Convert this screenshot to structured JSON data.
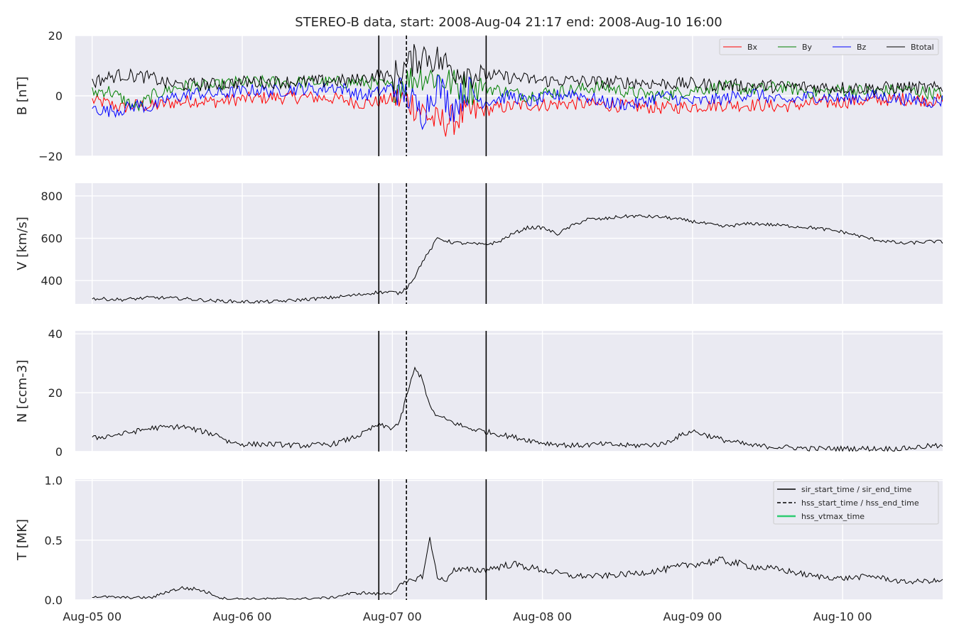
{
  "chart_data": {
    "type": "line",
    "title": "STEREO-B data, start: 2008-Aug-04 21:17  end: 2008-Aug-10 16:00",
    "x_ticks": [
      "Aug-05 00",
      "Aug-06 00",
      "Aug-07 00",
      "Aug-08 00",
      "Aug-09 00",
      "Aug-10 00"
    ],
    "markers": {
      "sir_start_time": "2008-08-06 21:50",
      "hss_start_time": "2008-08-07 02:15",
      "sir_end_time": "2008-08-07 15:00"
    },
    "legend_events": [
      {
        "label": "sir_start_time / sir_end_time",
        "color": "#000000",
        "dash": "solid"
      },
      {
        "label": "hss_start_time / hss_end_time",
        "color": "#000000",
        "dash": "dashed"
      },
      {
        "label": "hss_vtmax_time",
        "color": "#2ecc71",
        "dash": "solid"
      }
    ],
    "panels": [
      {
        "id": "B",
        "ylabel": "B [nT]",
        "ylim": [
          -20,
          20
        ],
        "yticks": [
          "−20",
          "0",
          "20"
        ],
        "ytick_values": [
          -20,
          0,
          20
        ],
        "series": [
          {
            "name": "Bx",
            "color": "#ff0000",
            "x": [
              0.0,
              0.1,
              0.2,
              0.3,
              0.4,
              0.5,
              0.6,
              0.7,
              0.8,
              0.9,
              1.0,
              1.1,
              1.2,
              1.3,
              1.4,
              1.5,
              1.6,
              1.7,
              1.8,
              1.9,
              2.0,
              2.1,
              2.2,
              2.3,
              2.4,
              2.5,
              2.6,
              2.7,
              2.8,
              2.9,
              3.0,
              3.2,
              3.4,
              3.6,
              3.8,
              4.0,
              4.2,
              4.4,
              4.6,
              4.8,
              5.0,
              5.2,
              5.4,
              5.6,
              5.75
            ],
            "values": [
              -1.5,
              -2.5,
              -4.0,
              -3.0,
              -3.5,
              -2.5,
              -2.0,
              -1.5,
              -2.0,
              -1.5,
              -1.0,
              -0.8,
              -0.5,
              -0.6,
              -0.4,
              -0.6,
              -0.8,
              -1.5,
              -2.5,
              -2.0,
              -1.0,
              -1.5,
              -5.0,
              -9.0,
              -8.0,
              -6.0,
              -5.0,
              -4.0,
              -3.5,
              -3.0,
              -3.0,
              -2.5,
              -3.0,
              -3.5,
              -4.0,
              -3.5,
              -3.0,
              -3.0,
              -3.5,
              -2.5,
              -2.0,
              -1.5,
              -1.0,
              -1.5,
              -1.0
            ]
          },
          {
            "name": "By",
            "color": "#008000",
            "x": [
              0.0,
              0.1,
              0.2,
              0.3,
              0.4,
              0.5,
              0.6,
              0.7,
              0.8,
              0.9,
              1.0,
              1.1,
              1.2,
              1.3,
              1.4,
              1.5,
              1.6,
              1.7,
              1.8,
              1.9,
              2.0,
              2.1,
              2.2,
              2.3,
              2.4,
              2.5,
              2.6,
              2.7,
              2.8,
              2.9,
              3.0,
              3.2,
              3.4,
              3.6,
              3.8,
              4.0,
              4.2,
              4.4,
              4.6,
              4.8,
              5.0,
              5.2,
              5.4,
              5.6,
              5.75
            ],
            "values": [
              1.0,
              2.0,
              -1.0,
              -4.0,
              0.0,
              2.0,
              3.0,
              3.5,
              3.0,
              4.0,
              4.5,
              4.5,
              4.5,
              4.5,
              4.5,
              4.5,
              4.5,
              4.5,
              4.5,
              4.0,
              3.0,
              5.0,
              7.0,
              6.0,
              4.0,
              2.0,
              3.0,
              2.0,
              1.0,
              0.0,
              1.0,
              2.0,
              3.0,
              1.0,
              0.0,
              2.0,
              3.0,
              2.0,
              3.0,
              1.0,
              2.0,
              1.5,
              2.0,
              1.0,
              0.0
            ]
          },
          {
            "name": "Bz",
            "color": "#0000ff",
            "x": [
              0.0,
              0.1,
              0.2,
              0.3,
              0.4,
              0.5,
              0.6,
              0.7,
              0.8,
              0.9,
              1.0,
              1.1,
              1.2,
              1.3,
              1.4,
              1.5,
              1.6,
              1.7,
              1.8,
              1.9,
              2.0,
              2.1,
              2.2,
              2.3,
              2.4,
              2.5,
              2.6,
              2.7,
              2.8,
              2.9,
              3.0,
              3.2,
              3.4,
              3.6,
              3.8,
              4.0,
              4.2,
              4.4,
              4.6,
              4.8,
              5.0,
              5.2,
              5.4,
              5.6,
              5.75
            ],
            "values": [
              -4.0,
              -5.0,
              -4.5,
              -3.0,
              -4.0,
              -1.0,
              0.0,
              1.0,
              0.5,
              1.0,
              1.5,
              2.0,
              1.5,
              2.0,
              2.5,
              2.0,
              3.0,
              2.0,
              0.0,
              1.0,
              3.0,
              0.0,
              -6.0,
              4.0,
              -4.0,
              2.0,
              -2.0,
              -1.0,
              0.0,
              -2.0,
              -1.0,
              1.0,
              -2.0,
              -3.0,
              0.0,
              -2.0,
              -1.0,
              1.0,
              -2.0,
              0.0,
              -1.0,
              0.0,
              -1.0,
              -2.0,
              -1.0
            ]
          },
          {
            "name": "Btotal",
            "color": "#000000",
            "x": [
              0.0,
              0.1,
              0.2,
              0.3,
              0.4,
              0.5,
              0.6,
              0.7,
              0.8,
              0.9,
              1.0,
              1.1,
              1.2,
              1.3,
              1.4,
              1.5,
              1.6,
              1.7,
              1.8,
              1.9,
              2.0,
              2.1,
              2.2,
              2.3,
              2.4,
              2.5,
              2.6,
              2.7,
              2.8,
              2.9,
              3.0,
              3.2,
              3.4,
              3.6,
              3.8,
              4.0,
              4.2,
              4.4,
              4.6,
              4.8,
              5.0,
              5.2,
              5.4,
              5.6,
              5.75
            ],
            "values": [
              4.5,
              6.0,
              7.0,
              6.5,
              6.0,
              4.0,
              3.5,
              4.0,
              3.8,
              4.0,
              4.5,
              4.6,
              4.6,
              4.7,
              4.7,
              4.8,
              5.0,
              5.0,
              5.5,
              7.0,
              6.0,
              10.0,
              14.0,
              12.0,
              9.0,
              8.0,
              7.0,
              6.5,
              6.0,
              5.5,
              5.0,
              5.0,
              4.5,
              4.5,
              4.0,
              4.0,
              3.5,
              3.5,
              3.0,
              3.0,
              2.8,
              2.5,
              2.8,
              2.5,
              2.5
            ]
          }
        ]
      },
      {
        "id": "V",
        "ylabel": "V [km/s]",
        "ylim": [
          290,
          860
        ],
        "yticks": [
          "400",
          "600",
          "800"
        ],
        "ytick_values": [
          400,
          600,
          800
        ],
        "series": [
          {
            "name": "V",
            "color": "#000000",
            "x": [
              0.0,
              0.2,
              0.4,
              0.6,
              0.8,
              1.0,
              1.2,
              1.4,
              1.6,
              1.8,
              1.9,
              2.0,
              2.05,
              2.1,
              2.15,
              2.2,
              2.25,
              2.3,
              2.4,
              2.5,
              2.6,
              2.7,
              2.8,
              2.9,
              3.0,
              3.1,
              3.2,
              3.3,
              3.4,
              3.5,
              3.6,
              3.8,
              4.0,
              4.2,
              4.4,
              4.6,
              4.8,
              5.0,
              5.2,
              5.4,
              5.6,
              5.75
            ],
            "values": [
              315,
              310,
              320,
              315,
              305,
              300,
              300,
              310,
              320,
              335,
              345,
              345,
              340,
              370,
              420,
              490,
              540,
              600,
              580,
              575,
              570,
              580,
              620,
              650,
              650,
              620,
              660,
              690,
              690,
              700,
              705,
              700,
              680,
              655,
              670,
              660,
              650,
              630,
              595,
              575,
              585,
              580
            ]
          }
        ]
      },
      {
        "id": "N",
        "ylabel": "N [ccm-3]",
        "ylim": [
          0,
          41
        ],
        "yticks": [
          "0",
          "20",
          "40"
        ],
        "ytick_values": [
          0,
          20,
          40
        ],
        "series": [
          {
            "name": "N",
            "color": "#000000",
            "x": [
              0.0,
              0.2,
              0.4,
              0.6,
              0.8,
              0.85,
              0.9,
              1.0,
              1.2,
              1.4,
              1.6,
              1.7,
              1.8,
              1.9,
              2.0,
              2.05,
              2.1,
              2.15,
              2.2,
              2.25,
              2.3,
              2.4,
              2.5,
              2.6,
              2.8,
              3.0,
              3.2,
              3.4,
              3.6,
              3.8,
              3.9,
              4.0,
              4.2,
              4.4,
              4.6,
              4.8,
              5.0,
              5.2,
              5.4,
              5.6,
              5.75
            ],
            "values": [
              4.5,
              6.0,
              8.0,
              8.5,
              6.0,
              5.5,
              3.5,
              2.5,
              2.5,
              2.0,
              2.5,
              4.0,
              6.0,
              9.0,
              8.0,
              10.0,
              20.0,
              28.0,
              25.0,
              15.0,
              12.0,
              10.0,
              8.0,
              7.0,
              5.0,
              3.0,
              2.0,
              2.5,
              2.0,
              2.5,
              5.0,
              7.0,
              4.0,
              2.0,
              1.5,
              1.0,
              1.0,
              1.0,
              1.0,
              2.0,
              1.0
            ]
          }
        ]
      },
      {
        "id": "T",
        "ylabel": "T [MK]",
        "ylim": [
          0,
          1.01
        ],
        "yticks": [
          "0.0",
          "0.5",
          "1.0"
        ],
        "ytick_values": [
          0,
          0.5,
          1.0
        ],
        "series": [
          {
            "name": "T",
            "color": "#000000",
            "x": [
              0.0,
              0.2,
              0.4,
              0.5,
              0.6,
              0.7,
              0.8,
              0.85,
              0.9,
              1.0,
              1.2,
              1.4,
              1.6,
              1.7,
              1.8,
              1.9,
              2.0,
              2.05,
              2.1,
              2.2,
              2.25,
              2.3,
              2.35,
              2.4,
              2.6,
              2.8,
              3.0,
              3.2,
              3.4,
              3.6,
              3.8,
              4.0,
              4.2,
              4.4,
              4.6,
              4.8,
              5.0,
              5.2,
              5.4,
              5.6,
              5.75
            ],
            "values": [
              0.03,
              0.02,
              0.02,
              0.07,
              0.1,
              0.09,
              0.05,
              0.02,
              0.01,
              0.01,
              0.01,
              0.01,
              0.02,
              0.05,
              0.06,
              0.05,
              0.06,
              0.12,
              0.15,
              0.2,
              0.5,
              0.2,
              0.15,
              0.25,
              0.25,
              0.3,
              0.25,
              0.2,
              0.2,
              0.22,
              0.25,
              0.3,
              0.33,
              0.28,
              0.25,
              0.2,
              0.18,
              0.2,
              0.15,
              0.16,
              0.15
            ]
          }
        ]
      }
    ]
  }
}
